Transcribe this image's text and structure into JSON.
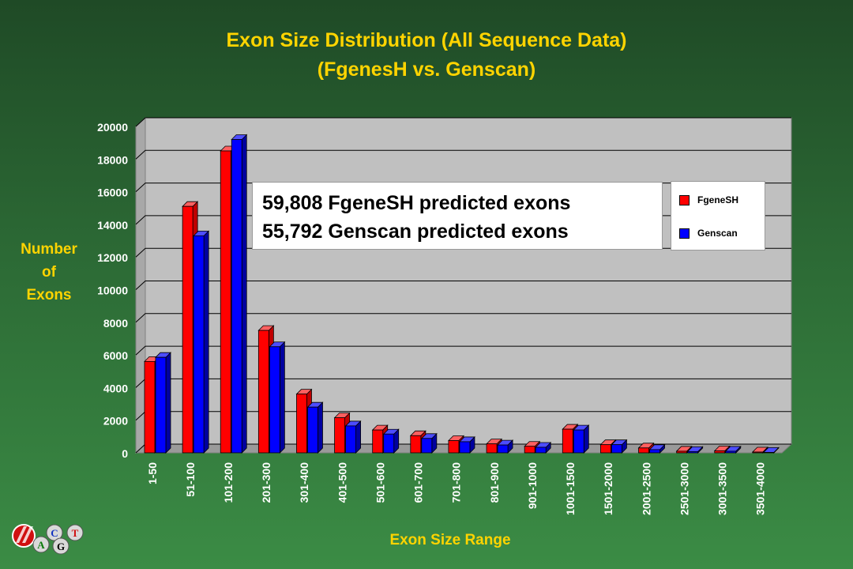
{
  "title_line1": "Exon Size Distribution (All Sequence Data)",
  "title_line2": "(FgenesH vs. Genscan)",
  "ylabel_lines": [
    "Number",
    "of",
    "Exons"
  ],
  "xlabel": "Exon Size Range",
  "annotation": [
    "59,808 FgeneSH predicted exons",
    "55,792 Genscan predicted exons"
  ],
  "colors": {
    "title": "#ffd400",
    "fgenesh": "#ff0000",
    "genscan": "#0000ff",
    "plot_bg": "#c0c0c0"
  },
  "logo_letters": [
    "A",
    "C",
    "G",
    "T"
  ],
  "chart_data": {
    "type": "bar",
    "title": "Exon Size Distribution (All Sequence Data) (FgenesH vs. Genscan)",
    "xlabel": "Exon Size Range",
    "ylabel": "Number of Exons",
    "ylim": [
      0,
      20000
    ],
    "yticks": [
      0,
      2000,
      4000,
      6000,
      8000,
      10000,
      12000,
      14000,
      16000,
      18000,
      20000
    ],
    "grid": true,
    "legend_position": "top-right",
    "categories": [
      "1-50",
      "51-100",
      "101-200",
      "201-300",
      "301-400",
      "401-500",
      "501-600",
      "601-700",
      "701-800",
      "801-900",
      "901-1000",
      "1001-1500",
      "1501-2000",
      "2001-2500",
      "2501-3000",
      "3001-3500",
      "3501-4000"
    ],
    "series": [
      {
        "name": "FgeneSH",
        "color": "#ff0000",
        "values": [
          5600,
          15100,
          18500,
          7500,
          3600,
          2150,
          1400,
          1050,
          750,
          550,
          400,
          1450,
          500,
          300,
          100,
          120,
          50
        ]
      },
      {
        "name": "Genscan",
        "color": "#0000ff",
        "values": [
          5850,
          13300,
          19200,
          6500,
          2800,
          1650,
          1150,
          880,
          680,
          480,
          340,
          1400,
          500,
          200,
          80,
          100,
          30
        ]
      }
    ]
  }
}
